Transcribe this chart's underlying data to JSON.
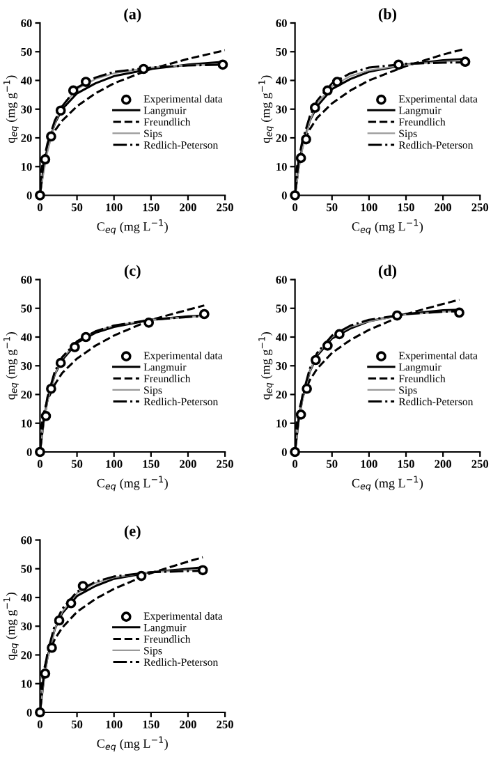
{
  "chart_data": [
    {
      "type": "line",
      "title": "(a)",
      "xlabel": "C$_{eq}$ (mg L$^{−1}$)",
      "ylabel": "q$_{eq}$ (mg g$^{−1}$)",
      "xlim": [
        0,
        250
      ],
      "ylim": [
        0,
        60
      ],
      "xticks": [
        0,
        50,
        100,
        150,
        200,
        250
      ],
      "yticks": [
        0,
        10,
        20,
        30,
        40,
        50,
        60
      ],
      "grid": false,
      "legend": "right",
      "series": [
        {
          "name": "Experimental data",
          "type": "scatter",
          "marker": "circle",
          "color": "#000000",
          "x": [
            0,
            7,
            15,
            28,
            45,
            62,
            140,
            247
          ],
          "values": [
            0,
            12.5,
            20.5,
            29.5,
            36.5,
            39.5,
            44,
            45.5
          ]
        },
        {
          "name": "Langmuir",
          "color": "#000000",
          "line_style": "solid",
          "x": [
            0,
            5,
            10,
            20,
            30,
            50,
            75,
            100,
            150,
            200,
            250
          ],
          "values": [
            0,
            10,
            16.5,
            25,
            30,
            35.5,
            39,
            41.5,
            44,
            45.5,
            46.5
          ]
        },
        {
          "name": "Freundlich",
          "color": "#000000",
          "line_style": "dashed",
          "x": [
            0,
            2,
            5,
            10,
            20,
            30,
            50,
            75,
            100,
            150,
            200,
            250
          ],
          "values": [
            0,
            9,
            13,
            17,
            22.5,
            26,
            31,
            35.5,
            39,
            44,
            47.5,
            50.5
          ]
        },
        {
          "name": "Sips",
          "color": "#999999",
          "line_style": "solid",
          "x": [
            0,
            5,
            10,
            20,
            30,
            50,
            75,
            100,
            150,
            200,
            250
          ],
          "values": [
            0,
            8,
            15,
            25,
            31,
            37,
            40.5,
            42.5,
            44.5,
            45.3,
            45.6
          ]
        },
        {
          "name": "Redlich-Peterson",
          "color": "#000000",
          "line_style": "dashdot",
          "x": [
            0,
            5,
            10,
            20,
            30,
            50,
            75,
            100,
            150,
            200,
            250
          ],
          "values": [
            0,
            12,
            18,
            26,
            31,
            37.5,
            41,
            43,
            44.5,
            45.2,
            45.5
          ]
        }
      ]
    },
    {
      "type": "line",
      "title": "(b)",
      "xlabel": "C$_{eq}$ (mg L$^{−1}$)",
      "ylabel": "q$_{eq}$ (mg g$^{−1}$)",
      "xlim": [
        0,
        250
      ],
      "ylim": [
        0,
        60
      ],
      "xticks": [
        0,
        50,
        100,
        150,
        200,
        250
      ],
      "yticks": [
        0,
        10,
        20,
        30,
        40,
        50,
        60
      ],
      "grid": false,
      "legend": "right",
      "series": [
        {
          "name": "Experimental data",
          "type": "scatter",
          "marker": "circle",
          "color": "#000000",
          "x": [
            0,
            8,
            15,
            27,
            44,
            57,
            140,
            230
          ],
          "values": [
            0,
            13,
            19.5,
            30.5,
            36.5,
            39.5,
            45.5,
            46.5
          ]
        },
        {
          "name": "Langmuir",
          "color": "#000000",
          "line_style": "solid",
          "x": [
            0,
            5,
            10,
            20,
            30,
            50,
            75,
            100,
            150,
            200,
            230
          ],
          "values": [
            0,
            10,
            17,
            26,
            31,
            37,
            40.5,
            43,
            45.5,
            47,
            47.5
          ]
        },
        {
          "name": "Freundlich",
          "color": "#000000",
          "line_style": "dashed",
          "x": [
            0,
            2,
            5,
            10,
            20,
            30,
            50,
            75,
            100,
            150,
            200,
            230
          ],
          "values": [
            0,
            9,
            13,
            17.5,
            23,
            27,
            32,
            36.5,
            40,
            45,
            49,
            51
          ]
        },
        {
          "name": "Sips",
          "color": "#999999",
          "line_style": "solid",
          "x": [
            0,
            5,
            10,
            20,
            30,
            50,
            75,
            100,
            150,
            200,
            230
          ],
          "values": [
            0,
            9,
            16,
            26,
            32,
            38,
            41.5,
            43.5,
            45.5,
            46.5,
            47
          ]
        },
        {
          "name": "Redlich-Peterson",
          "color": "#000000",
          "line_style": "dashdot",
          "x": [
            0,
            5,
            10,
            20,
            30,
            50,
            75,
            100,
            150,
            200,
            230
          ],
          "values": [
            0,
            12.5,
            19,
            27.5,
            33,
            39,
            42.5,
            44.5,
            45.8,
            46.2,
            46.3
          ]
        }
      ]
    },
    {
      "type": "line",
      "title": "(c)",
      "xlabel": "C$_{eq}$ (mg L$^{−1}$)",
      "ylabel": "q$_{eq}$ (mg g$^{−1}$)",
      "xlim": [
        0,
        250
      ],
      "ylim": [
        0,
        60
      ],
      "xticks": [
        0,
        50,
        100,
        150,
        200,
        250
      ],
      "yticks": [
        0,
        10,
        20,
        30,
        40,
        50,
        60
      ],
      "grid": false,
      "legend": "right",
      "series": [
        {
          "name": "Experimental data",
          "type": "scatter",
          "marker": "circle",
          "color": "#000000",
          "x": [
            0,
            8,
            15,
            28,
            47,
            62,
            147,
            222
          ],
          "values": [
            0,
            12.5,
            22,
            31,
            36.5,
            40,
            45,
            48
          ]
        },
        {
          "name": "Langmuir",
          "color": "#000000",
          "line_style": "solid",
          "x": [
            0,
            5,
            10,
            20,
            30,
            50,
            75,
            100,
            150,
            200,
            222
          ],
          "values": [
            0,
            10.5,
            18,
            27,
            32,
            38,
            41.5,
            43.5,
            46,
            47.2,
            47.5
          ]
        },
        {
          "name": "Freundlich",
          "color": "#000000",
          "line_style": "dashed",
          "x": [
            0,
            2,
            5,
            10,
            20,
            30,
            50,
            75,
            100,
            150,
            200,
            222
          ],
          "values": [
            0,
            9.5,
            13.5,
            18,
            23.5,
            27.5,
            32.5,
            37,
            40.5,
            46,
            49.5,
            51
          ]
        },
        {
          "name": "Sips",
          "color": "#999999",
          "line_style": "solid",
          "x": [
            0,
            5,
            10,
            20,
            30,
            50,
            75,
            100,
            150,
            200,
            222
          ],
          "values": [
            0,
            10,
            17.5,
            27,
            32.5,
            38.5,
            42,
            44,
            46,
            47,
            47.3
          ]
        },
        {
          "name": "Redlich-Peterson",
          "color": "#000000",
          "line_style": "dashdot",
          "x": [
            0,
            5,
            10,
            20,
            30,
            50,
            75,
            100,
            150,
            200,
            222
          ],
          "values": [
            0,
            11.5,
            19,
            28,
            33,
            38.5,
            42,
            44,
            46,
            47,
            47.3
          ]
        }
      ]
    },
    {
      "type": "line",
      "title": "(d)",
      "xlabel": "C$_{eq}$ (mg L$^{−1}$)",
      "ylabel": "q$_{eq}$ (mg g$^{−1}$)",
      "xlim": [
        0,
        250
      ],
      "ylim": [
        0,
        60
      ],
      "xticks": [
        0,
        50,
        100,
        150,
        200,
        250
      ],
      "yticks": [
        0,
        10,
        20,
        30,
        40,
        50,
        60
      ],
      "grid": false,
      "legend": "right",
      "series": [
        {
          "name": "Experimental data",
          "type": "scatter",
          "marker": "circle",
          "color": "#000000",
          "x": [
            0,
            8,
            16,
            28,
            44,
            60,
            138,
            222
          ],
          "values": [
            0,
            13,
            22,
            32,
            37,
            41,
            47.5,
            48.5
          ]
        },
        {
          "name": "Langmuir",
          "color": "#000000",
          "line_style": "solid",
          "x": [
            0,
            5,
            10,
            20,
            30,
            50,
            75,
            100,
            150,
            200,
            222
          ],
          "values": [
            0,
            11,
            18.5,
            28,
            33.5,
            39.5,
            43,
            45.5,
            48,
            49.3,
            49.5
          ]
        },
        {
          "name": "Freundlich",
          "color": "#000000",
          "line_style": "dashed",
          "x": [
            0,
            2,
            5,
            10,
            20,
            30,
            50,
            75,
            100,
            150,
            200,
            222
          ],
          "values": [
            0,
            10,
            14,
            19,
            25,
            29,
            34.5,
            39,
            42.5,
            48,
            51.5,
            53
          ]
        },
        {
          "name": "Sips",
          "color": "#999999",
          "line_style": "solid",
          "x": [
            0,
            5,
            10,
            20,
            30,
            50,
            75,
            100,
            150,
            200,
            222
          ],
          "values": [
            0,
            10.5,
            18,
            28,
            34,
            40,
            43.5,
            45.5,
            47.8,
            48.8,
            49
          ]
        },
        {
          "name": "Redlich-Peterson",
          "color": "#000000",
          "line_style": "dashdot",
          "x": [
            0,
            5,
            10,
            20,
            30,
            50,
            75,
            100,
            150,
            200,
            222
          ],
          "values": [
            0,
            12,
            19.5,
            29,
            34.5,
            40.5,
            44,
            46,
            48,
            48.8,
            49
          ]
        }
      ]
    },
    {
      "type": "line",
      "title": "(e)",
      "xlabel": "C$_{eq}$ (mg L$^{−1}$)",
      "ylabel": "q$_{eq}$ (mg g$^{−1}$)",
      "xlim": [
        0,
        250
      ],
      "ylim": [
        0,
        60
      ],
      "xticks": [
        0,
        50,
        100,
        150,
        200,
        250
      ],
      "yticks": [
        0,
        10,
        20,
        30,
        40,
        50,
        60
      ],
      "grid": false,
      "legend": "right",
      "series": [
        {
          "name": "Experimental data",
          "type": "scatter",
          "marker": "circle",
          "color": "#000000",
          "x": [
            0,
            7,
            16,
            26,
            42,
            58,
            137,
            220
          ],
          "values": [
            0,
            13.5,
            22.5,
            32,
            38,
            44,
            47.5,
            49.5
          ]
        },
        {
          "name": "Langmuir",
          "color": "#000000",
          "line_style": "solid",
          "x": [
            0,
            5,
            10,
            20,
            30,
            50,
            75,
            100,
            150,
            200,
            220
          ],
          "values": [
            0,
            11,
            19,
            29,
            34.5,
            40.5,
            44,
            46.5,
            48.8,
            50,
            50.5
          ]
        },
        {
          "name": "Freundlich",
          "color": "#000000",
          "line_style": "dashed",
          "x": [
            0,
            2,
            5,
            10,
            20,
            30,
            50,
            75,
            100,
            150,
            200,
            220
          ],
          "values": [
            0,
            10,
            14.5,
            19.5,
            25.5,
            29.5,
            35,
            39.5,
            43,
            48.5,
            52.5,
            54
          ]
        },
        {
          "name": "Sips",
          "color": "#999999",
          "line_style": "solid",
          "x": [
            0,
            5,
            10,
            20,
            30,
            50,
            75,
            100,
            150,
            200,
            220
          ],
          "values": [
            0,
            10.5,
            18.5,
            29,
            35,
            41.5,
            45,
            47,
            48.8,
            49.5,
            49.7
          ]
        },
        {
          "name": "Redlich-Peterson",
          "color": "#000000",
          "line_style": "dashdot",
          "x": [
            0,
            5,
            10,
            20,
            30,
            50,
            75,
            100,
            150,
            200,
            220
          ],
          "values": [
            0,
            13,
            20.5,
            30.5,
            36,
            42,
            45.5,
            47.3,
            48.8,
            49.2,
            49.3
          ]
        }
      ]
    }
  ]
}
